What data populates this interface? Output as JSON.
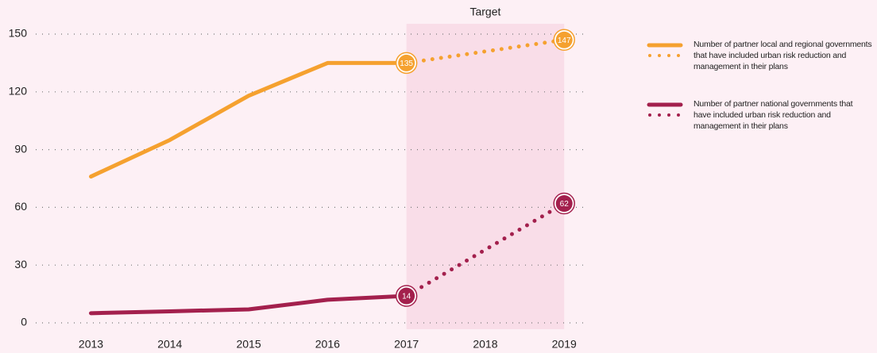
{
  "chart_data": {
    "type": "line",
    "x": [
      2013,
      2014,
      2015,
      2016,
      2017,
      2018,
      2019
    ],
    "xlim": [
      2012.3,
      2019.3
    ],
    "xticks": [
      2013,
      2014,
      2015,
      2016,
      2017,
      2018,
      2019
    ],
    "ylim": [
      0,
      150
    ],
    "yticks": [
      0,
      30,
      60,
      90,
      120,
      150
    ],
    "grid": true,
    "target": {
      "label": "Target",
      "xlim": [
        2017,
        2019
      ],
      "color": "#f9dde8"
    },
    "legend": "right",
    "series": [
      {
        "name": "Number of partner local and regional governments that have included urban risk reduction and management in their plans",
        "color": "#f5a12f",
        "values": [
          76,
          95,
          118,
          135,
          135,
          141,
          147
        ],
        "value_labels": [
          null,
          null,
          null,
          null,
          "135",
          null,
          "147"
        ]
      },
      {
        "name": "Number of partner national governments that have included urban risk reduction and management in their plans",
        "color": "#a3204d",
        "values": [
          5,
          6,
          7,
          12,
          14,
          38,
          62
        ],
        "value_labels": [
          null,
          null,
          null,
          null,
          "14",
          null,
          "62"
        ]
      }
    ]
  }
}
